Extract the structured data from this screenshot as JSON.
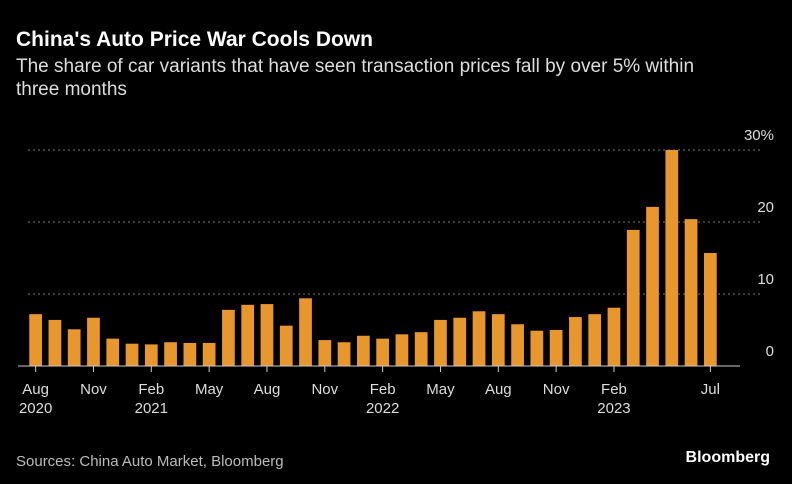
{
  "chart_data": {
    "type": "bar",
    "title": "China's Auto Price War Cools Down",
    "subtitle": "The share of car variants that have seen transaction prices fall by over 5% within three months",
    "source": "Sources: China Auto Market, Bloomberg",
    "brand": "Bloomberg",
    "categories": [
      "Aug 2020",
      null,
      null,
      "Nov",
      null,
      null,
      "Feb 2021",
      null,
      null,
      "May",
      null,
      null,
      "Aug",
      null,
      null,
      "Nov",
      null,
      null,
      "Feb 2022",
      null,
      null,
      "May",
      null,
      null,
      "Aug",
      null,
      null,
      "Nov",
      null,
      null,
      "Feb 2023",
      null,
      null,
      null,
      null,
      "Jul"
    ],
    "values": [
      7.2,
      6.4,
      5.1,
      6.7,
      3.8,
      3.1,
      3.0,
      3.3,
      3.2,
      3.2,
      7.8,
      8.5,
      8.6,
      5.6,
      9.4,
      3.6,
      3.3,
      4.2,
      3.8,
      4.4,
      4.7,
      6.4,
      6.7,
      7.6,
      7.2,
      5.8,
      4.9,
      5.0,
      6.8,
      7.2,
      8.1,
      18.9,
      22.1,
      30.0,
      20.4,
      15.7
    ],
    "color": "#e8962e",
    "ylim": [
      0,
      30
    ],
    "yticks": [
      0,
      10,
      20,
      {
        "value": 30,
        "label": "30%"
      }
    ],
    "grid": true
  }
}
